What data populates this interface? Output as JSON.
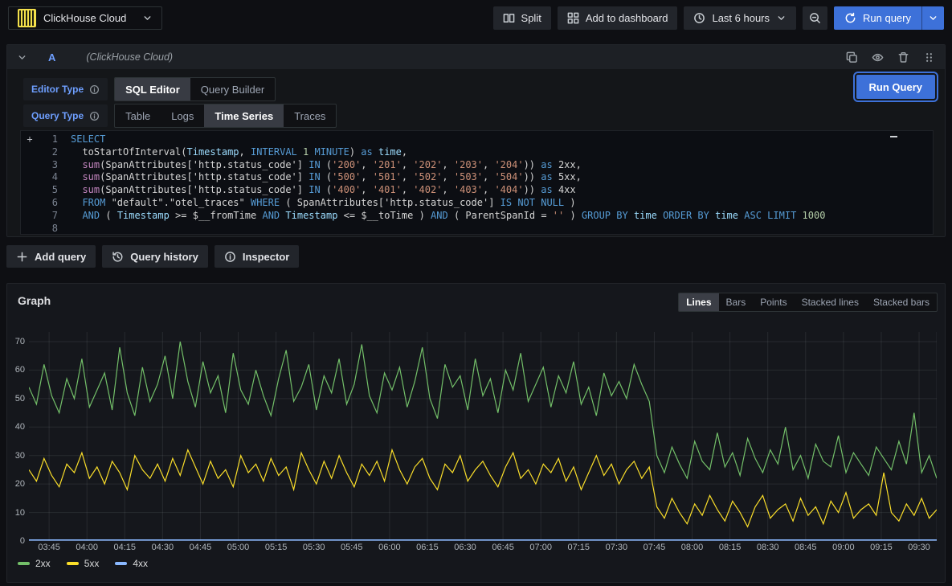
{
  "topbar": {
    "datasource_picker": {
      "label": "ClickHouse Cloud"
    },
    "split": "Split",
    "add_to_dashboard": "Add to dashboard",
    "time_range": "Last 6 hours",
    "run_query": "Run query"
  },
  "query_panel": {
    "ref_id": "A",
    "datasource_hint": "(ClickHouse Cloud)",
    "editor_type": {
      "label": "Editor Type",
      "options": [
        "SQL Editor",
        "Query Builder"
      ],
      "selected": "SQL Editor"
    },
    "query_type": {
      "label": "Query Type",
      "options": [
        "Table",
        "Logs",
        "Time Series",
        "Traces"
      ],
      "selected": "Time Series"
    },
    "run_query": "Run Query",
    "sql": {
      "gutter_plus": "+",
      "lines": [
        {
          "n": 1,
          "t": [
            [
              "SELECT",
              "kw"
            ]
          ]
        },
        {
          "n": 2,
          "t": [
            [
              "  toStartOfInterval(",
              "txt"
            ],
            [
              "Timestamp",
              "var"
            ],
            [
              ", ",
              "txt"
            ],
            [
              "INTERVAL",
              "kw"
            ],
            [
              " ",
              "txt"
            ],
            [
              "1",
              "num"
            ],
            [
              " ",
              "txt"
            ],
            [
              "MINUTE",
              "kw"
            ],
            [
              ") ",
              "txt"
            ],
            [
              "as",
              "kw"
            ],
            [
              " ",
              "txt"
            ],
            [
              "time",
              "var"
            ],
            [
              ",",
              "txt"
            ]
          ]
        },
        {
          "n": 3,
          "t": [
            [
              "  ",
              "txt"
            ],
            [
              "sum",
              "fn"
            ],
            [
              "(SpanAttributes['http.status_code'] ",
              "txt"
            ],
            [
              "IN",
              "kw"
            ],
            [
              " (",
              "txt"
            ],
            [
              "'200'",
              "str"
            ],
            [
              ", ",
              "txt"
            ],
            [
              "'201'",
              "str"
            ],
            [
              ", ",
              "txt"
            ],
            [
              "'202'",
              "str"
            ],
            [
              ", ",
              "txt"
            ],
            [
              "'203'",
              "str"
            ],
            [
              ", ",
              "txt"
            ],
            [
              "'204'",
              "str"
            ],
            [
              ")) ",
              "txt"
            ],
            [
              "as",
              "kw"
            ],
            [
              " 2xx,",
              "txt"
            ]
          ]
        },
        {
          "n": 4,
          "t": [
            [
              "  ",
              "txt"
            ],
            [
              "sum",
              "fn"
            ],
            [
              "(SpanAttributes['http.status_code'] ",
              "txt"
            ],
            [
              "IN",
              "kw"
            ],
            [
              " (",
              "txt"
            ],
            [
              "'500'",
              "str"
            ],
            [
              ", ",
              "txt"
            ],
            [
              "'501'",
              "str"
            ],
            [
              ", ",
              "txt"
            ],
            [
              "'502'",
              "str"
            ],
            [
              ", ",
              "txt"
            ],
            [
              "'503'",
              "str"
            ],
            [
              ", ",
              "txt"
            ],
            [
              "'504'",
              "str"
            ],
            [
              ")) ",
              "txt"
            ],
            [
              "as",
              "kw"
            ],
            [
              " 5xx,",
              "txt"
            ]
          ]
        },
        {
          "n": 5,
          "t": [
            [
              "  ",
              "txt"
            ],
            [
              "sum",
              "fn"
            ],
            [
              "(SpanAttributes['http.status_code'] ",
              "txt"
            ],
            [
              "IN",
              "kw"
            ],
            [
              " (",
              "txt"
            ],
            [
              "'400'",
              "str"
            ],
            [
              ", ",
              "txt"
            ],
            [
              "'401'",
              "str"
            ],
            [
              ", ",
              "txt"
            ],
            [
              "'402'",
              "str"
            ],
            [
              ", ",
              "txt"
            ],
            [
              "'403'",
              "str"
            ],
            [
              ", ",
              "txt"
            ],
            [
              "'404'",
              "str"
            ],
            [
              ")) ",
              "txt"
            ],
            [
              "as",
              "kw"
            ],
            [
              " 4xx",
              "txt"
            ]
          ]
        },
        {
          "n": 6,
          "t": [
            [
              "  ",
              "txt"
            ],
            [
              "FROM",
              "kw"
            ],
            [
              " \"default\".\"otel_traces\" ",
              "txt"
            ],
            [
              "WHERE",
              "kw"
            ],
            [
              " ( SpanAttributes['http.status_code'] ",
              "txt"
            ],
            [
              "IS NOT NULL",
              "kw"
            ],
            [
              " )",
              "txt"
            ]
          ]
        },
        {
          "n": 7,
          "t": [
            [
              "  ",
              "txt"
            ],
            [
              "AND",
              "kw"
            ],
            [
              " ( ",
              "txt"
            ],
            [
              "Timestamp",
              "var"
            ],
            [
              " >= ",
              "txt"
            ],
            [
              "$__fromTime ",
              "txt"
            ],
            [
              "AND",
              "kw"
            ],
            [
              " ",
              "txt"
            ],
            [
              "Timestamp",
              "var"
            ],
            [
              " <= ",
              "txt"
            ],
            [
              "$__toTime ) ",
              "txt"
            ],
            [
              "AND",
              "kw"
            ],
            [
              " ( ParentSpanId = ",
              "txt"
            ],
            [
              "''",
              "str"
            ],
            [
              " ) ",
              "txt"
            ],
            [
              "GROUP BY",
              "kw"
            ],
            [
              " ",
              "txt"
            ],
            [
              "time",
              "var"
            ],
            [
              " ",
              "txt"
            ],
            [
              "ORDER BY",
              "kw"
            ],
            [
              " ",
              "txt"
            ],
            [
              "time",
              "var"
            ],
            [
              " ",
              "txt"
            ],
            [
              "ASC",
              "kw"
            ],
            [
              " ",
              "txt"
            ],
            [
              "LIMIT",
              "kw"
            ],
            [
              " ",
              "txt"
            ],
            [
              "1000",
              "num"
            ]
          ]
        },
        {
          "n": 8,
          "t": []
        }
      ]
    }
  },
  "actions": {
    "add_query": "Add query",
    "query_history": "Query history",
    "inspector": "Inspector"
  },
  "graph_panel": {
    "title": "Graph",
    "modes": {
      "options": [
        "Lines",
        "Bars",
        "Points",
        "Stacked lines",
        "Stacked bars"
      ],
      "selected": "Lines"
    }
  },
  "chart_data": {
    "type": "line",
    "title": "Graph",
    "x_axis": {
      "start": "03:37",
      "end": "09:37",
      "step_minutes": 3,
      "tick_labels": [
        "03:45",
        "04:00",
        "04:15",
        "04:30",
        "04:45",
        "05:00",
        "05:15",
        "05:30",
        "05:45",
        "06:00",
        "06:15",
        "06:30",
        "06:45",
        "07:00",
        "07:15",
        "07:30",
        "07:45",
        "08:00",
        "08:15",
        "08:30",
        "08:45",
        "09:00",
        "09:15",
        "09:30"
      ],
      "tick_offsets_min": [
        8,
        23,
        38,
        53,
        68,
        83,
        98,
        113,
        128,
        143,
        158,
        173,
        188,
        203,
        218,
        233,
        248,
        263,
        278,
        293,
        308,
        323,
        338,
        353
      ]
    },
    "y_axis": {
      "min": 0,
      "max": 70,
      "ticks": [
        0,
        10,
        20,
        30,
        40,
        50,
        60,
        70
      ]
    },
    "grid": true,
    "legend_position": "bottom-left",
    "series": [
      {
        "name": "2xx",
        "color": "#73bf69",
        "values": [
          54,
          48,
          62,
          51,
          45,
          57,
          50,
          64,
          47,
          53,
          59,
          46,
          68,
          52,
          44,
          61,
          49,
          55,
          65,
          50,
          70,
          56,
          47,
          63,
          52,
          58,
          45,
          66,
          53,
          48,
          60,
          51,
          44,
          57,
          67,
          49,
          54,
          62,
          46,
          58,
          52,
          64,
          48,
          55,
          69,
          51,
          45,
          59,
          53,
          61,
          47,
          56,
          68,
          50,
          43,
          62,
          54,
          58,
          46,
          64,
          51,
          57,
          45,
          60,
          53,
          66,
          49,
          55,
          61,
          47,
          58,
          52,
          63,
          48,
          54,
          44,
          59,
          51,
          56,
          50,
          62,
          55,
          49,
          30,
          24,
          33,
          27,
          22,
          35,
          28,
          25,
          38,
          26,
          31,
          23,
          36,
          29,
          24,
          32,
          27,
          40,
          25,
          30,
          22,
          34,
          28,
          26,
          37,
          24,
          31,
          27,
          23,
          33,
          29,
          25,
          35,
          27,
          45,
          24,
          30,
          22
        ]
      },
      {
        "name": "5xx",
        "color": "#fade2a",
        "values": [
          25,
          21,
          29,
          23,
          19,
          27,
          24,
          31,
          22,
          26,
          20,
          28,
          24,
          18,
          30,
          25,
          22,
          27,
          21,
          29,
          23,
          32,
          26,
          20,
          28,
          22,
          25,
          19,
          30,
          24,
          27,
          21,
          29,
          23,
          26,
          18,
          31,
          25,
          20,
          28,
          22,
          30,
          24,
          19,
          27,
          23,
          28,
          21,
          32,
          25,
          20,
          26,
          29,
          22,
          18,
          27,
          24,
          30,
          21,
          25,
          28,
          23,
          19,
          26,
          31,
          22,
          25,
          20,
          27,
          24,
          29,
          21,
          26,
          18,
          24,
          30,
          23,
          27,
          20,
          25,
          28,
          22,
          26,
          12,
          8,
          15,
          10,
          6,
          13,
          9,
          16,
          11,
          7,
          14,
          10,
          5,
          12,
          16,
          8,
          11,
          13,
          7,
          15,
          9,
          12,
          6,
          14,
          10,
          17,
          8,
          11,
          13,
          9,
          24,
          10,
          7,
          13,
          9,
          15,
          8,
          11
        ]
      },
      {
        "name": "4xx",
        "color": "#8ab8ff",
        "values": [
          0,
          0,
          0,
          0,
          0,
          0,
          0,
          0,
          0,
          0,
          0,
          0,
          0,
          0,
          0,
          0,
          0,
          0,
          0,
          0,
          0,
          0,
          0,
          0,
          0,
          0,
          0,
          0,
          0,
          0,
          0,
          0,
          0,
          0,
          0,
          0,
          0,
          0,
          0,
          0,
          0,
          0,
          0,
          0,
          0,
          0,
          0,
          0,
          0,
          0,
          0,
          0,
          0,
          0,
          0,
          0,
          0,
          0,
          0,
          0,
          0,
          0,
          0,
          0,
          0,
          0,
          0,
          0,
          0,
          0,
          0,
          0,
          0,
          0,
          0,
          0,
          0,
          0,
          0,
          0,
          0,
          0,
          0,
          0,
          0,
          0,
          0,
          0,
          0,
          0,
          0,
          0,
          0,
          0,
          0,
          0,
          0,
          0,
          0,
          0,
          0,
          0,
          0,
          0,
          0,
          0,
          0,
          0,
          0,
          0,
          0,
          0,
          0,
          0,
          0,
          0,
          0,
          0,
          0,
          0,
          0
        ]
      }
    ]
  }
}
